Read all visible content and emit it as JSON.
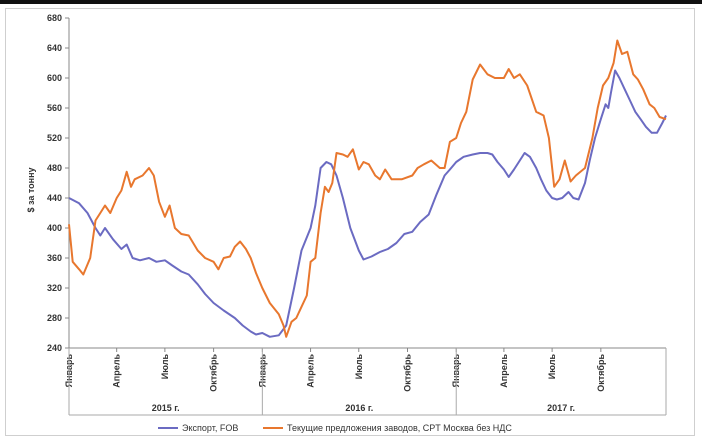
{
  "chart_data": {
    "type": "line",
    "title": "",
    "ylabel": "$ за тонну",
    "ylim": [
      240,
      680
    ],
    "yticks": [
      240,
      280,
      320,
      360,
      400,
      440,
      480,
      520,
      560,
      600,
      640,
      680
    ],
    "grid": false,
    "legend_position": "bottom",
    "x_axis": {
      "month_labels": [
        "Январь",
        "Апрель",
        "Июль",
        "Октябрь",
        "Январь",
        "Апрель",
        "Июль",
        "Октябрь",
        "Январь",
        "Апрель",
        "Июль",
        "Октябрь"
      ],
      "year_labels": [
        "2015 г.",
        "2016 г.",
        "2017 г."
      ]
    },
    "series": [
      {
        "name": "Экспорт, FOB",
        "color": "#6b6bc2",
        "points": [
          [
            "2015-01-01",
            440
          ],
          [
            "2015-01-20",
            433
          ],
          [
            "2015-02-05",
            420
          ],
          [
            "2015-02-20",
            400
          ],
          [
            "2015-03-01",
            390
          ],
          [
            "2015-03-10",
            400
          ],
          [
            "2015-03-25",
            385
          ],
          [
            "2015-04-10",
            372
          ],
          [
            "2015-04-20",
            378
          ],
          [
            "2015-05-01",
            360
          ],
          [
            "2015-05-15",
            357
          ],
          [
            "2015-06-01",
            360
          ],
          [
            "2015-06-15",
            355
          ],
          [
            "2015-07-01",
            357
          ],
          [
            "2015-07-15",
            350
          ],
          [
            "2015-08-01",
            342
          ],
          [
            "2015-08-15",
            338
          ],
          [
            "2015-09-01",
            325
          ],
          [
            "2015-09-15",
            312
          ],
          [
            "2015-10-01",
            300
          ],
          [
            "2015-10-20",
            290
          ],
          [
            "2015-11-10",
            280
          ],
          [
            "2015-11-25",
            270
          ],
          [
            "2015-12-10",
            262
          ],
          [
            "2015-12-20",
            258
          ],
          [
            "2016-01-01",
            260
          ],
          [
            "2016-01-15",
            255
          ],
          [
            "2016-02-01",
            257
          ],
          [
            "2016-02-15",
            270
          ],
          [
            "2016-03-01",
            320
          ],
          [
            "2016-03-15",
            370
          ],
          [
            "2016-04-01",
            400
          ],
          [
            "2016-04-10",
            430
          ],
          [
            "2016-04-20",
            480
          ],
          [
            "2016-05-01",
            488
          ],
          [
            "2016-05-10",
            485
          ],
          [
            "2016-05-20",
            470
          ],
          [
            "2016-06-01",
            440
          ],
          [
            "2016-06-15",
            400
          ],
          [
            "2016-07-01",
            370
          ],
          [
            "2016-07-10",
            358
          ],
          [
            "2016-07-25",
            362
          ],
          [
            "2016-08-10",
            368
          ],
          [
            "2016-08-25",
            372
          ],
          [
            "2016-09-10",
            380
          ],
          [
            "2016-09-25",
            392
          ],
          [
            "2016-10-10",
            395
          ],
          [
            "2016-10-25",
            408
          ],
          [
            "2016-11-10",
            418
          ],
          [
            "2016-11-25",
            445
          ],
          [
            "2016-12-10",
            470
          ],
          [
            "2016-12-20",
            478
          ],
          [
            "2017-01-01",
            488
          ],
          [
            "2017-01-15",
            495
          ],
          [
            "2017-02-01",
            498
          ],
          [
            "2017-02-15",
            500
          ],
          [
            "2017-03-01",
            500
          ],
          [
            "2017-03-10",
            498
          ],
          [
            "2017-03-20",
            488
          ],
          [
            "2017-04-01",
            478
          ],
          [
            "2017-04-10",
            468
          ],
          [
            "2017-04-20",
            478
          ],
          [
            "2017-05-01",
            490
          ],
          [
            "2017-05-10",
            500
          ],
          [
            "2017-05-20",
            495
          ],
          [
            "2017-06-01",
            480
          ],
          [
            "2017-06-10",
            465
          ],
          [
            "2017-06-20",
            450
          ],
          [
            "2017-07-01",
            440
          ],
          [
            "2017-07-10",
            438
          ],
          [
            "2017-07-20",
            440
          ],
          [
            "2017-08-01",
            448
          ],
          [
            "2017-08-10",
            440
          ],
          [
            "2017-08-20",
            438
          ],
          [
            "2017-09-01",
            460
          ],
          [
            "2017-09-10",
            490
          ],
          [
            "2017-09-20",
            520
          ],
          [
            "2017-10-01",
            545
          ],
          [
            "2017-10-10",
            565
          ],
          [
            "2017-10-15",
            560
          ],
          [
            "2017-10-20",
            580
          ],
          [
            "2017-10-28",
            610
          ],
          [
            "2017-11-05",
            600
          ],
          [
            "2017-11-15",
            585
          ],
          [
            "2017-11-25",
            570
          ],
          [
            "2017-12-05",
            555
          ],
          [
            "2017-12-15",
            545
          ],
          [
            "2017-12-25",
            535
          ],
          [
            "2018-01-05",
            527
          ],
          [
            "2018-01-15",
            527
          ],
          [
            "2018-01-25",
            540
          ],
          [
            "2018-02-01",
            550
          ]
        ]
      },
      {
        "name": "Текущие предложения заводов, CPT Москва без НДС",
        "color": "#e8772e",
        "points": [
          [
            "2015-01-01",
            405
          ],
          [
            "2015-01-08",
            355
          ],
          [
            "2015-01-20",
            345
          ],
          [
            "2015-01-28",
            338
          ],
          [
            "2015-02-10",
            360
          ],
          [
            "2015-02-20",
            410
          ],
          [
            "2015-03-01",
            420
          ],
          [
            "2015-03-10",
            430
          ],
          [
            "2015-03-20",
            420
          ],
          [
            "2015-04-01",
            440
          ],
          [
            "2015-04-10",
            450
          ],
          [
            "2015-04-20",
            475
          ],
          [
            "2015-04-28",
            455
          ],
          [
            "2015-05-05",
            465
          ],
          [
            "2015-05-20",
            470
          ],
          [
            "2015-06-01",
            480
          ],
          [
            "2015-06-10",
            470
          ],
          [
            "2015-06-20",
            435
          ],
          [
            "2015-07-01",
            415
          ],
          [
            "2015-07-10",
            430
          ],
          [
            "2015-07-20",
            400
          ],
          [
            "2015-08-01",
            392
          ],
          [
            "2015-08-15",
            390
          ],
          [
            "2015-09-01",
            370
          ],
          [
            "2015-09-15",
            360
          ],
          [
            "2015-10-01",
            355
          ],
          [
            "2015-10-10",
            345
          ],
          [
            "2015-10-20",
            360
          ],
          [
            "2015-11-01",
            362
          ],
          [
            "2015-11-10",
            375
          ],
          [
            "2015-11-20",
            382
          ],
          [
            "2015-12-01",
            372
          ],
          [
            "2015-12-10",
            360
          ],
          [
            "2015-12-20",
            340
          ],
          [
            "2016-01-01",
            320
          ],
          [
            "2016-01-15",
            300
          ],
          [
            "2016-02-01",
            285
          ],
          [
            "2016-02-10",
            270
          ],
          [
            "2016-02-15",
            255
          ],
          [
            "2016-02-25",
            275
          ],
          [
            "2016-03-05",
            280
          ],
          [
            "2016-03-15",
            295
          ],
          [
            "2016-03-25",
            310
          ],
          [
            "2016-04-01",
            355
          ],
          [
            "2016-04-10",
            360
          ],
          [
            "2016-04-20",
            420
          ],
          [
            "2016-04-28",
            455
          ],
          [
            "2016-05-05",
            448
          ],
          [
            "2016-05-12",
            460
          ],
          [
            "2016-05-20",
            500
          ],
          [
            "2016-06-01",
            498
          ],
          [
            "2016-06-10",
            495
          ],
          [
            "2016-06-20",
            505
          ],
          [
            "2016-07-01",
            478
          ],
          [
            "2016-07-10",
            488
          ],
          [
            "2016-07-20",
            485
          ],
          [
            "2016-08-01",
            470
          ],
          [
            "2016-08-10",
            465
          ],
          [
            "2016-08-20",
            478
          ],
          [
            "2016-09-01",
            465
          ],
          [
            "2016-09-20",
            465
          ],
          [
            "2016-10-10",
            470
          ],
          [
            "2016-10-20",
            480
          ],
          [
            "2016-11-01",
            485
          ],
          [
            "2016-11-15",
            490
          ],
          [
            "2016-12-01",
            480
          ],
          [
            "2016-12-10",
            480
          ],
          [
            "2016-12-20",
            515
          ],
          [
            "2017-01-01",
            520
          ],
          [
            "2017-01-10",
            540
          ],
          [
            "2017-01-20",
            555
          ],
          [
            "2017-02-01",
            598
          ],
          [
            "2017-02-15",
            618
          ],
          [
            "2017-03-01",
            605
          ],
          [
            "2017-03-15",
            600
          ],
          [
            "2017-04-01",
            600
          ],
          [
            "2017-04-10",
            612
          ],
          [
            "2017-04-20",
            600
          ],
          [
            "2017-05-01",
            605
          ],
          [
            "2017-05-15",
            590
          ],
          [
            "2017-06-01",
            555
          ],
          [
            "2017-06-15",
            550
          ],
          [
            "2017-06-25",
            520
          ],
          [
            "2017-07-05",
            455
          ],
          [
            "2017-07-15",
            465
          ],
          [
            "2017-07-25",
            490
          ],
          [
            "2017-08-05",
            462
          ],
          [
            "2017-08-15",
            470
          ],
          [
            "2017-09-01",
            480
          ],
          [
            "2017-09-15",
            520
          ],
          [
            "2017-09-25",
            560
          ],
          [
            "2017-10-05",
            590
          ],
          [
            "2017-10-15",
            600
          ],
          [
            "2017-10-25",
            620
          ],
          [
            "2017-11-01",
            650
          ],
          [
            "2017-11-10",
            632
          ],
          [
            "2017-11-20",
            635
          ],
          [
            "2017-12-01",
            605
          ],
          [
            "2017-12-10",
            598
          ],
          [
            "2017-12-20",
            585
          ],
          [
            "2018-01-01",
            565
          ],
          [
            "2018-01-10",
            560
          ],
          [
            "2018-01-20",
            548
          ],
          [
            "2018-02-01",
            545
          ]
        ]
      }
    ]
  }
}
